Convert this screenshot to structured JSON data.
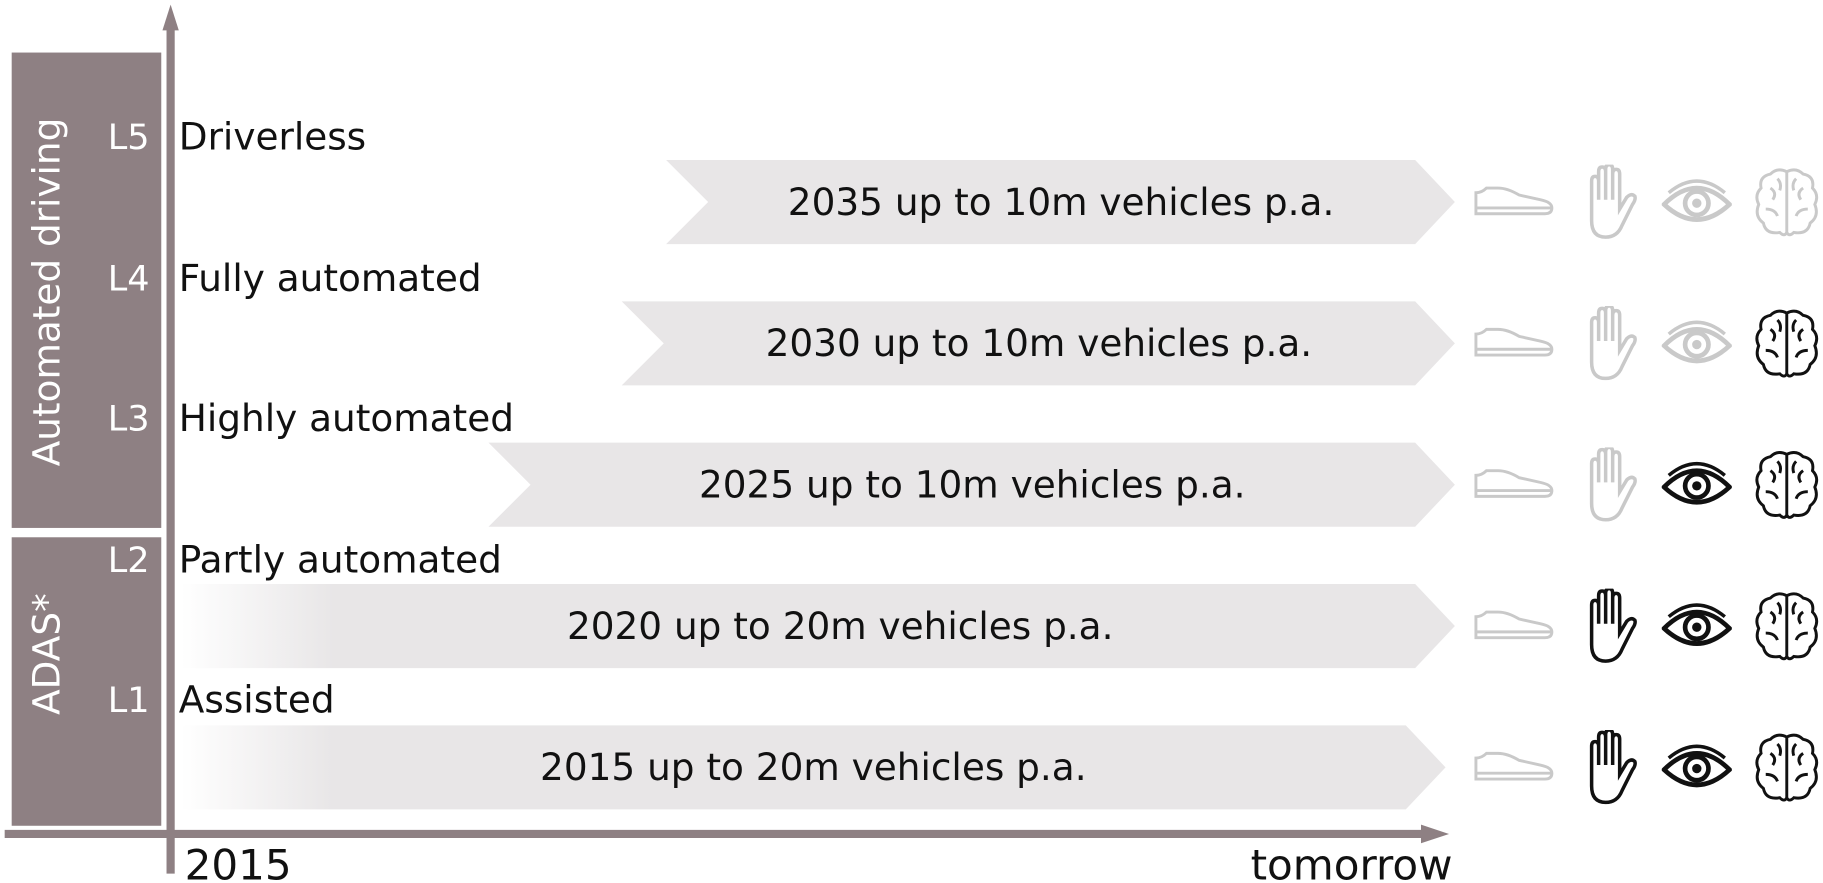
{
  "axis": {
    "start": "2015",
    "end": "tomorrow"
  },
  "groups": [
    {
      "label": "Automated driving"
    },
    {
      "label": "ADAS*"
    }
  ],
  "levels": [
    {
      "code": "L5",
      "name": "Driverless",
      "forecast": "2035 up to 10m vehicles p.a."
    },
    {
      "code": "L4",
      "name": "Fully automated",
      "forecast": "2030 up to 10m vehicles p.a."
    },
    {
      "code": "L3",
      "name": "Highly automated",
      "forecast": "2025 up to 10m vehicles p.a."
    },
    {
      "code": "L2",
      "name": "Partly automated",
      "forecast": "2020 up to 20m vehicles p.a."
    },
    {
      "code": "L1",
      "name": "Assisted",
      "forecast": "2015 up to 20m vehicles p.a."
    }
  ]
}
